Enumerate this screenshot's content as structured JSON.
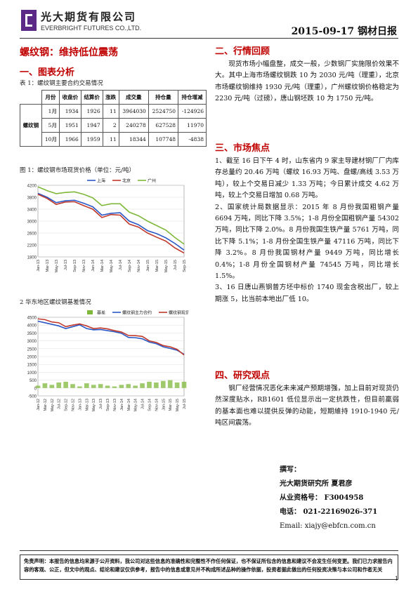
{
  "header": {
    "company_cn": "光大期货有限公司",
    "company_en": "EVERBRIGHT FUTURES CO.,LTD.",
    "date_title": "2015-09-17 钢材日报"
  },
  "main_title": "螺纹钢：维持低位震荡",
  "section1": {
    "title": "一、图表分析",
    "table_caption": "表 1：螺纹钢主要合约交易情况",
    "table": {
      "headers": [
        "月份",
        "收盘价",
        "结算价",
        "涨跌",
        "成交量",
        "持仓量",
        "持仓增减"
      ],
      "product": "螺纹钢",
      "rows": [
        [
          "1月",
          "1934",
          "1926",
          "11",
          "3964030",
          "2524750",
          "-124926"
        ],
        [
          "5月",
          "1951",
          "1947",
          "2",
          "240278",
          "627528",
          "11970"
        ],
        [
          "10月",
          "1966",
          "1959",
          "11",
          "18344",
          "107748",
          "-4838"
        ]
      ]
    }
  },
  "chart1_caption": "图 1：螺纹钢市场现货价格（单位：元/吨）",
  "chart2_caption": "2  华东地区螺纹钢基差情况",
  "chart_data": [
    {
      "type": "line",
      "x": [
        "Jan-13",
        "Mar-13",
        "May-13",
        "Jul-13",
        "Sep-13",
        "Nov-13",
        "Jan-14",
        "Mar-14",
        "May-14",
        "Jul-14",
        "Sep-14",
        "Nov-14",
        "Jan-15",
        "Mar-15",
        "May-15",
        "Jul-15",
        "Sep-15"
      ],
      "series": [
        {
          "name": "上海",
          "color": "#2a58c4",
          "values": [
            3930,
            3800,
            3620,
            3680,
            3700,
            3600,
            3480,
            3200,
            3260,
            3280,
            3000,
            2880,
            2680,
            2580,
            2440,
            2250,
            2030
          ]
        },
        {
          "name": "北京",
          "color": "#c0392b",
          "values": [
            3900,
            3760,
            3560,
            3640,
            3650,
            3520,
            3400,
            3120,
            3220,
            3200,
            2900,
            2800,
            2600,
            2460,
            2330,
            2100,
            1930
          ]
        },
        {
          "name": "广州",
          "color": "#7fb83a",
          "values": [
            4150,
            4020,
            3920,
            3960,
            3980,
            3900,
            3780,
            3520,
            3580,
            3580,
            3300,
            3180,
            3000,
            2850,
            2700,
            2450,
            2230
          ]
        }
      ],
      "ylim": [
        1800,
        4200
      ],
      "yticks": [
        1800,
        2200,
        2600,
        3000,
        3400,
        3800,
        4200
      ],
      "legend": "top"
    },
    {
      "type": "bar+line",
      "x": [
        "Jan-12",
        "Mar-12",
        "May-12",
        "Jul-12",
        "Sep-12",
        "Nov-12",
        "Jan-13",
        "Mar-13",
        "May-13",
        "Jul-13",
        "Sep-13",
        "Nov-13",
        "Jan-14",
        "Mar-14",
        "May-14",
        "Jul-14",
        "Sep-14",
        "Nov-14",
        "Jan-15",
        "Mar-15",
        "May-15",
        "Jul-15"
      ],
      "bars": {
        "name": "基差",
        "color": "#7fb83a",
        "values": [
          150,
          300,
          200,
          350,
          400,
          250,
          100,
          300,
          200,
          250,
          150,
          100,
          200,
          250,
          150,
          300,
          400,
          350,
          450,
          500,
          350,
          400
        ]
      },
      "series": [
        {
          "name": "螺纹钢主力合约",
          "color": "#2a58c4",
          "values": [
            4250,
            4150,
            4050,
            3950,
            3780,
            3900,
            4020,
            3780,
            3700,
            3720,
            3650,
            3580,
            3480,
            3220,
            3200,
            3130,
            2920,
            2820,
            2620,
            2520,
            2400,
            2150
          ]
        },
        {
          "name": "螺纹钢现货(上海)",
          "color": "#c0392b",
          "values": [
            4400,
            4350,
            4200,
            4150,
            3900,
            4000,
            4080,
            3950,
            3780,
            3820,
            3760,
            3650,
            3560,
            3340,
            3330,
            3280,
            3000,
            2900,
            2700,
            2620,
            2460,
            2100
          ]
        }
      ],
      "ylim": [
        -500,
        4500
      ],
      "yticks": [
        -500,
        0,
        500,
        1000,
        1500,
        2000,
        2500,
        3000,
        3500,
        4000,
        4500
      ],
      "legend": "top"
    }
  ],
  "section2": {
    "title": "二、行情回顾",
    "body": "现货市场小幅盘整，成交一般，少数钢厂实施限价效果不大。其中上海市场螺纹钢跌 10 为 2030 元/吨（理重），北京市场螺纹钢维持 1930 元/吨（理重），广州螺纹钢价格稳定为 2230 元/吨（过磅），唐山钢坯跌 10 为 1750 元/吨。"
  },
  "section3": {
    "title": "三、市场焦点",
    "items": [
      "1、截至 16 日下午 4 时，山东省内 9 家主导建材钢厂厂内库存总量约 20.46 万吨（螺纹 16.93 万吨、盘螺/高线 3.53 万吨），较上个交易日减少 1.33 万吨；今日累计成交 4.62 万吨，较上个交易日增加 0.68 万吨。",
      "2、国家统计局数据显示：2015 年 8 月份我国粗钢产量 6694 万吨，同比下降 3.5%；1-8 月份全国粗钢产量 54302 万吨，同比下降 2.0%。8 月份我国生铁产量 5761 万吨，同比下降 5.1%；1-8 月份全国生铁产量 47116 万吨，同比下降 3.2%。8 月份我国钢材产量 9449 万吨，同比增长 0.4%；1-8 月份全国钢材产量 74545 万吨，同比增长 1.5%。",
      "3、16 日唐山燕钢普方坯中标价 1740 现金含税出厂，较上期涨 5，比当前本地出厂低 10。"
    ]
  },
  "section4": {
    "title": "四、研究观点",
    "body": "钢厂经营情况恶化未来减产预期增强，加上目前对现货仍然深度贴水，RB1601 低位显示出一定抗跌性，但目前羸弱的基本面也难以提供反弹的动能，短期維持 1910-1940 元/吨区间震荡。"
  },
  "author": {
    "label": "撰写：",
    "name_line": "光大期货研究所  夏君彦",
    "cert": "从业资格号：  F3004958",
    "phone": "电话：  021-22169026-371",
    "email": "Email:  xiajy@ebfcn.com.cn"
  },
  "disclaimer": "免责声明：本报告的信息均来源于公开资料，我公司对这些信息的准确性和完整性不作任何保证，也不保证所包含的信息和建议不会发生任何变更。我们已力求报告内容的客观、公正，但文中的观点、结论和建议仅供参考，报告中的信息或意见并不构成所述品种的操作依据，投资者据此做出的任何投资决策与本公司和作者无关",
  "page_number": "1"
}
